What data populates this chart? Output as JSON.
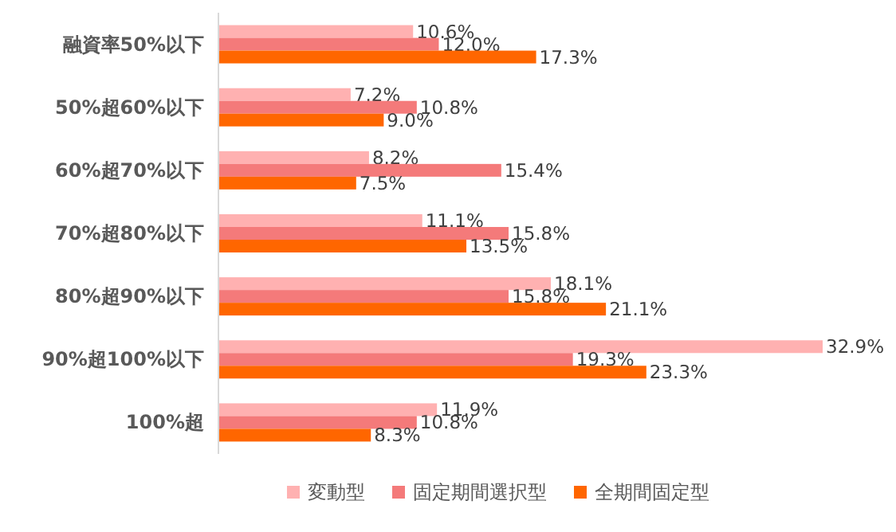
{
  "chart_data": {
    "type": "bar",
    "orientation": "horizontal",
    "legend": "bottom",
    "categories": [
      "融資率50%以下",
      "50%超60%以下",
      "60%超70%以下",
      "70%超80%以下",
      "80%超90%以下",
      "90%超100%以下",
      "100%超"
    ],
    "series": [
      {
        "name": "変動型",
        "color": "#ffb1b1",
        "values": [
          10.6,
          7.2,
          8.2,
          11.1,
          18.1,
          32.9,
          11.9
        ],
        "value_labels": [
          "10.6%",
          "7.2%",
          "8.2%",
          "11.1%",
          "18.1%",
          "32.9%",
          "11.9%"
        ]
      },
      {
        "name": "固定期間選択型",
        "color": "#f47a7a",
        "values": [
          12.0,
          10.8,
          15.4,
          15.8,
          15.8,
          19.3,
          10.8
        ],
        "value_labels": [
          "12.0%",
          "10.8%",
          "15.4%",
          "15.8%",
          "15.8%",
          "19.3%",
          "10.8%"
        ]
      },
      {
        "name": "全期間固定型",
        "color": "#ff6600",
        "values": [
          17.3,
          9.0,
          7.5,
          13.5,
          21.1,
          23.3,
          8.3
        ],
        "value_labels": [
          "17.3%",
          "9.0%",
          "7.5%",
          "13.5%",
          "21.1%",
          "23.3%",
          "8.3%"
        ]
      }
    ]
  }
}
